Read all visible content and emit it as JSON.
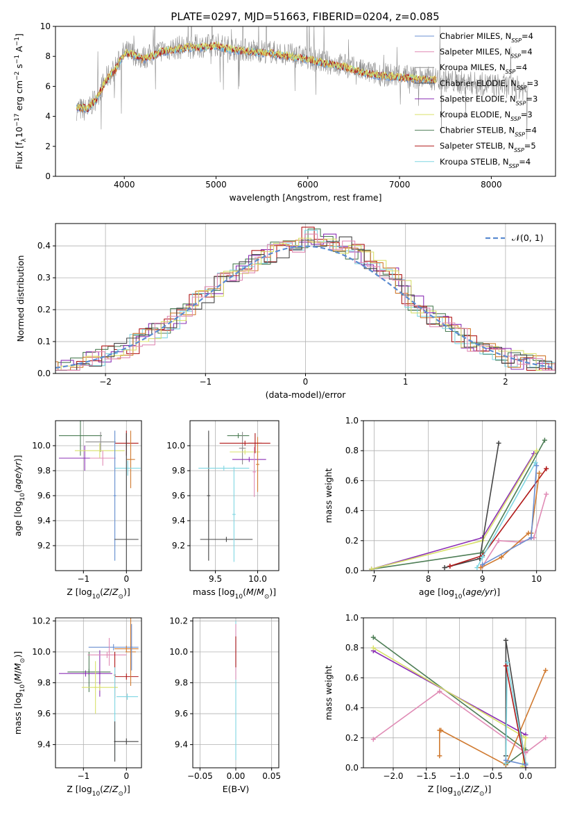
{
  "figure": {
    "title": "PLATE=0297, MJD=51663, FIBERID=0204, z=0.085"
  },
  "palette": {
    "Chabrier MILES": "#6a8fd0",
    "Salpeter MILES": "#e08bb5",
    "Kroupa MILES": "#8c8c8c",
    "Chabrier ELODIE": "#444444",
    "Salpeter ELODIE": "#8b2fb5",
    "Kroupa ELODIE": "#d8e06a",
    "Chabrier STELIB": "#4d7d55",
    "Salpeter STELIB": "#b01818",
    "Kroupa STELIB": "#7fd6e2",
    "orange": "#d07a30",
    "gaussian": "#5b8bd0"
  },
  "chart_data": [
    {
      "id": "spectrum",
      "type": "line",
      "title": "PLATE=0297, MJD=51663, FIBERID=0204, z=0.085",
      "xlabel": "wavelength [Angstrom, rest frame]",
      "ylabel": "Flux [f_λ 10^-17 erg cm^-2 s^-1 A^-1]",
      "xlim": [
        3250,
        8700
      ],
      "ylim": [
        0,
        10
      ],
      "xticks": [
        4000,
        5000,
        6000,
        7000,
        8000
      ],
      "yticks": [
        0,
        2,
        4,
        6,
        8,
        10
      ],
      "xtick_labels": [
        "4000",
        "5000",
        "6000",
        "7000",
        "8000"
      ],
      "ytick_labels": [
        "0",
        "2",
        "4",
        "6",
        "8",
        "10"
      ],
      "grid": false,
      "legend_position": "right",
      "legend": [
        {
          "base": "Chabrier MILES, N",
          "sub": "SSP",
          "tail": "=4"
        },
        {
          "base": "Salpeter MILES, N",
          "sub": "SSP",
          "tail": "=4"
        },
        {
          "base": "Kroupa MILES, N",
          "sub": "SSP",
          "tail": "=4"
        },
        {
          "base": "Chabrier ELODIE, N",
          "sub": "SSP",
          "tail": "=3"
        },
        {
          "base": "Salpeter ELODIE, N",
          "sub": "SSP",
          "tail": "=3"
        },
        {
          "base": "Kroupa ELODIE, N",
          "sub": "SSP",
          "tail": "=3"
        },
        {
          "base": "Chabrier STELIB, N",
          "sub": "SSP",
          "tail": "=4"
        },
        {
          "base": "Salpeter STELIB, N",
          "sub": "SSP",
          "tail": "=5"
        },
        {
          "base": "Kroupa STELIB, N",
          "sub": "SSP",
          "tail": "=4"
        }
      ],
      "observed_flux": {
        "x": [
          3500,
          3600,
          3700,
          3800,
          3900,
          4000,
          4100,
          4200,
          4300,
          4400,
          4500,
          4600,
          4700,
          4800,
          4900,
          5000,
          5200,
          5400,
          5600,
          5800,
          6000,
          6200,
          6400,
          6600,
          6800,
          7000,
          7200,
          7400,
          7600,
          7800,
          8000,
          8200,
          8400
        ],
        "y": [
          4.5,
          4.4,
          5.3,
          6.5,
          7.2,
          8.3,
          8.2,
          7.9,
          8.1,
          8.4,
          8.5,
          8.6,
          8.6,
          8.7,
          8.7,
          8.8,
          8.5,
          8.4,
          8.3,
          8.1,
          7.9,
          7.6,
          7.4,
          7.0,
          6.8,
          6.7,
          6.6,
          6.5,
          6.3,
          6.2,
          6.1,
          6.0,
          5.8
        ]
      },
      "model_flux": {
        "x": [
          3500,
          3600,
          3700,
          3800,
          3900,
          4000,
          4100,
          4200,
          4300,
          4400,
          4500,
          4600,
          4700,
          4800,
          4900,
          5000,
          5200,
          5400,
          5600,
          5800,
          6000,
          6200,
          6400,
          6600,
          6800,
          7000,
          7200,
          7400
        ],
        "y": [
          4.6,
          4.5,
          5.2,
          6.4,
          7.1,
          8.2,
          8.1,
          7.8,
          8.0,
          8.3,
          8.4,
          8.5,
          8.6,
          8.6,
          8.6,
          8.7,
          8.4,
          8.3,
          8.2,
          8.0,
          7.8,
          7.5,
          7.3,
          6.9,
          6.7,
          6.6,
          6.5,
          6.4
        ]
      }
    },
    {
      "id": "residuals",
      "type": "line",
      "xlabel": "(data-model)/error",
      "ylabel": "Normed distribution",
      "xlim": [
        -2.5,
        2.5
      ],
      "ylim": [
        0,
        0.47
      ],
      "xticks": [
        -2,
        -1,
        0,
        1,
        2
      ],
      "yticks": [
        0.0,
        0.1,
        0.2,
        0.3,
        0.4
      ],
      "xtick_labels": [
        "−2",
        "−1",
        "0",
        "1",
        "2"
      ],
      "ytick_labels": [
        "0.0",
        "0.1",
        "0.2",
        "0.3",
        "0.4"
      ],
      "grid": true,
      "legend_position": "top-right",
      "legend_label": "𝒩(0, 1)",
      "gaussian": {
        "mean": 0,
        "sigma": 1
      },
      "bin_width": 0.125
    },
    {
      "id": "age-vs-Z",
      "type": "scatter",
      "xlabel": "Z [log10(Z/Z⊙)]",
      "ylabel": "age [log10(age/yr)]",
      "xlim": [
        -1.65,
        0.35
      ],
      "ylim": [
        9.0,
        10.2
      ],
      "xticks": [
        -1,
        0
      ],
      "xtick_labels": [
        "−1",
        "0"
      ],
      "yticks": [
        9.2,
        9.4,
        9.6,
        9.8,
        10.0
      ],
      "ytick_labels": [
        "9.2",
        "9.4",
        "9.6",
        "9.8",
        "10.0"
      ],
      "grid": true,
      "errorbars": [
        {
          "x": -1.07,
          "xerr": 0.5,
          "y": 10.08,
          "yerr": 0.16,
          "color": "Chabrier STELIB"
        },
        {
          "x": -0.6,
          "xerr": 0.35,
          "y": 10.03,
          "yerr": 0.08,
          "color": "Kroupa MILES"
        },
        {
          "x": -0.97,
          "xerr": 0.6,
          "y": 9.9,
          "yerr": 0.1,
          "color": "Salpeter ELODIE"
        },
        {
          "x": -0.62,
          "xerr": 0.58,
          "y": 9.96,
          "yerr": 0.06,
          "color": "Kroupa ELODIE"
        },
        {
          "x": -0.55,
          "xerr": 0.3,
          "y": 9.9,
          "yerr": 0.06,
          "color": "Salpeter MILES"
        },
        {
          "x": 0.0,
          "xerr": 0.28,
          "y": 10.02,
          "yerr": 0.1,
          "color": "Salpeter STELIB"
        },
        {
          "x": 0.1,
          "xerr": 0.1,
          "y": 9.89,
          "yerr": 0.23,
          "color": "orange"
        },
        {
          "x": 0.03,
          "xerr": 0.3,
          "y": 9.82,
          "yerr": 0.06,
          "color": "Kroupa STELIB"
        },
        {
          "x": -0.27,
          "xerr": 0.03,
          "y": 9.6,
          "yerr": 0.52,
          "color": "Kroupa STELIB"
        },
        {
          "x": -0.27,
          "xerr": 0.03,
          "y": 9.6,
          "yerr": 0.52,
          "color": "Chabrier MILES"
        },
        {
          "x": 0.0,
          "xerr": 0.28,
          "y": 9.25,
          "yerr": 0.85,
          "color": "Chabrier ELODIE"
        }
      ]
    },
    {
      "id": "age-vs-mass",
      "type": "scatter",
      "xlabel": "mass [log10(M/M⊙)]",
      "ylabel": "",
      "xlim": [
        9.2,
        10.25
      ],
      "ylim": [
        9.0,
        10.2
      ],
      "xticks": [
        9.5,
        10.0
      ],
      "xtick_labels": [
        "9.5",
        "10.0"
      ],
      "yticks": [
        9.2,
        9.4,
        9.6,
        9.8,
        10.0
      ],
      "ytick_labels": [
        "9.2",
        "9.4",
        "9.6",
        "9.8",
        "10.0"
      ],
      "grid": true,
      "errorbars": [
        {
          "x": 9.42,
          "xerr": 0.02,
          "y": 9.6,
          "yerr": 0.52,
          "color": "Chabrier ELODIE"
        },
        {
          "x": 9.63,
          "xerr": 0.31,
          "y": 9.25,
          "yerr": 0.02,
          "color": "Chabrier ELODIE"
        },
        {
          "x": 9.72,
          "xerr": 0.02,
          "y": 9.45,
          "yerr": 0.38,
          "color": "Kroupa STELIB"
        },
        {
          "x": 9.6,
          "xerr": 0.3,
          "y": 9.82,
          "yerr": 0.02,
          "color": "Kroupa STELIB"
        },
        {
          "x": 9.77,
          "xerr": 0.13,
          "y": 10.08,
          "yerr": 0.02,
          "color": "Chabrier STELIB"
        },
        {
          "x": 9.82,
          "xerr": 0.04,
          "y": 9.98,
          "yerr": 0.13,
          "color": "Kroupa MILES"
        },
        {
          "x": 9.85,
          "xerr": 0.18,
          "y": 9.95,
          "yerr": 0.02,
          "color": "Kroupa ELODIE"
        },
        {
          "x": 9.9,
          "xerr": 0.2,
          "y": 9.89,
          "yerr": 0.02,
          "color": "Salpeter ELODIE"
        },
        {
          "x": 9.96,
          "xerr": 0.02,
          "y": 9.79,
          "yerr": 0.2,
          "color": "Salpeter MILES"
        },
        {
          "x": 10.0,
          "xerr": 0.02,
          "y": 9.85,
          "yerr": 0.22,
          "color": "orange"
        },
        {
          "x": 9.85,
          "xerr": 0.3,
          "y": 10.02,
          "yerr": 0.02,
          "color": "Salpeter STELIB"
        },
        {
          "x": 9.97,
          "xerr": 0.08,
          "y": 10.02,
          "yerr": 0.08,
          "color": "Salpeter STELIB"
        }
      ]
    },
    {
      "id": "mass-weight-vs-age",
      "type": "line",
      "xlabel": "age [log10(age/yr)]",
      "ylabel": "mass weight",
      "xlim": [
        6.8,
        10.35
      ],
      "ylim": [
        0,
        1
      ],
      "xticks": [
        7,
        8,
        9,
        10
      ],
      "xtick_labels": [
        "7",
        "8",
        "9",
        "10"
      ],
      "yticks": [
        0.0,
        0.2,
        0.4,
        0.6,
        0.8,
        1.0
      ],
      "ytick_labels": [
        "0.0",
        "0.2",
        "0.4",
        "0.6",
        "0.8",
        "1.0"
      ],
      "grid": true,
      "series": [
        {
          "color": "Chabrier STELIB",
          "x": [
            6.95,
            9.0,
            10.15
          ],
          "y": [
            0.01,
            0.12,
            0.87
          ]
        },
        {
          "color": "Salpeter ELODIE",
          "x": [
            6.95,
            9.0,
            9.95
          ],
          "y": [
            0.01,
            0.22,
            0.78
          ]
        },
        {
          "color": "Kroupa ELODIE",
          "x": [
            6.95,
            9.0,
            10.0
          ],
          "y": [
            0.01,
            0.2,
            0.8
          ]
        },
        {
          "color": "Chabrier ELODIE",
          "x": [
            8.3,
            8.95,
            9.3
          ],
          "y": [
            0.02,
            0.08,
            0.85
          ]
        },
        {
          "color": "Salpeter STELIB",
          "x": [
            8.4,
            9.0,
            10.18
          ],
          "y": [
            0.03,
            0.1,
            0.68
          ]
        },
        {
          "color": "Kroupa STELIB",
          "x": [
            8.9,
            9.0,
            9.98
          ],
          "y": [
            0.02,
            0.09,
            0.72
          ]
        },
        {
          "color": "Salpeter MILES",
          "x": [
            9.0,
            9.3,
            9.7,
            9.95,
            10.18
          ],
          "y": [
            0.03,
            0.2,
            0.19,
            0.22,
            0.51
          ]
        },
        {
          "color": "orange",
          "x": [
            8.97,
            9.35,
            9.85,
            9.9,
            10.05
          ],
          "y": [
            0.02,
            0.09,
            0.25,
            0.25,
            0.65
          ]
        },
        {
          "color": "Chabrier MILES",
          "x": [
            9.0,
            9.9,
            10.0
          ],
          "y": [
            0.04,
            0.22,
            0.7
          ]
        }
      ]
    },
    {
      "id": "mass-vs-Z",
      "type": "scatter",
      "xlabel": "Z [log10(Z/Z⊙)]",
      "ylabel": "mass [log10(M/M⊙)]",
      "xlim": [
        -1.65,
        0.35
      ],
      "ylim": [
        9.25,
        10.22
      ],
      "xticks": [
        -1,
        0
      ],
      "xtick_labels": [
        "−1",
        "0"
      ],
      "yticks": [
        9.4,
        9.6,
        9.8,
        10.0,
        10.2
      ],
      "ytick_labels": [
        "9.4",
        "9.6",
        "9.8",
        "10.0",
        "10.2"
      ],
      "grid": true,
      "errorbars": [
        {
          "x": -0.87,
          "xerr": 0.5,
          "y": 9.87,
          "yerr": 0.02,
          "color": "Chabrier STELIB"
        },
        {
          "x": -0.87,
          "xerr": 0.02,
          "y": 9.87,
          "yerr": 0.13,
          "color": "Chabrier STELIB"
        },
        {
          "x": -0.95,
          "xerr": 0.62,
          "y": 9.86,
          "yerr": 0.02,
          "color": "Salpeter ELODIE"
        },
        {
          "x": -0.62,
          "xerr": 0.02,
          "y": 9.86,
          "yerr": 0.15,
          "color": "Salpeter ELODIE"
        },
        {
          "x": -0.62,
          "xerr": 0.42,
          "y": 9.77,
          "yerr": 0.02,
          "color": "Kroupa ELODIE"
        },
        {
          "x": -0.72,
          "xerr": 0.02,
          "y": 9.77,
          "yerr": 0.17,
          "color": "Kroupa ELODIE"
        },
        {
          "x": -0.3,
          "xerr": 0.58,
          "y": 10.03,
          "yerr": 0.02,
          "color": "Chabrier MILES"
        },
        {
          "x": -0.4,
          "xerr": 0.02,
          "y": 10.0,
          "yerr": 0.09,
          "color": "Salpeter MILES"
        },
        {
          "x": -0.45,
          "xerr": 0.45,
          "y": 9.98,
          "yerr": 0.02,
          "color": "Salpeter MILES"
        },
        {
          "x": 0.0,
          "xerr": 0.28,
          "y": 9.84,
          "yerr": 0.02,
          "color": "Salpeter STELIB"
        },
        {
          "x": -0.27,
          "xerr": 0.02,
          "y": 9.85,
          "yerr": 0.15,
          "color": "Salpeter STELIB"
        },
        {
          "x": 0.1,
          "xerr": 0.12,
          "y": 10.0,
          "yerr": 0.22,
          "color": "orange"
        },
        {
          "x": 0.0,
          "xerr": 0.28,
          "y": 10.02,
          "yerr": 0.02,
          "color": "orange"
        },
        {
          "x": 0.02,
          "xerr": 0.25,
          "y": 9.71,
          "yerr": 0.02,
          "color": "Kroupa STELIB"
        },
        {
          "x": -0.27,
          "xerr": 0.02,
          "y": 9.6,
          "yerr": 0.3,
          "color": "Kroupa STELIB"
        },
        {
          "x": 0.12,
          "xerr": 0.02,
          "y": 10.03,
          "yerr": 0.15,
          "color": "Chabrier MILES"
        },
        {
          "x": 0.0,
          "xerr": 0.28,
          "y": 9.42,
          "yerr": 0.02,
          "color": "Chabrier ELODIE"
        },
        {
          "x": -0.27,
          "xerr": 0.02,
          "y": 9.42,
          "yerr": 0.13,
          "color": "Chabrier ELODIE"
        }
      ]
    },
    {
      "id": "mass-vs-EBV",
      "type": "scatter",
      "xlabel": "E(B-V)",
      "ylabel": "",
      "xlim": [
        -0.06,
        0.06
      ],
      "ylim": [
        9.25,
        10.22
      ],
      "xticks": [
        -0.05,
        0.0,
        0.05
      ],
      "xtick_labels": [
        "−0.05",
        "0.00",
        "0.05"
      ],
      "yticks": [
        9.4,
        9.6,
        9.8,
        10.0,
        10.2
      ],
      "ytick_labels": [
        "9.4",
        "9.6",
        "9.8",
        "10.0",
        "10.2"
      ],
      "grid": true,
      "errorbars": [
        {
          "x": 0.0,
          "xerr": 0.0,
          "y": 9.75,
          "yerr": 0.45,
          "color": "Kroupa STELIB"
        },
        {
          "x": 0.0,
          "xerr": 0.0,
          "y": 10.0,
          "yerr": 0.18,
          "color": "Salpeter MILES"
        },
        {
          "x": 0.0,
          "xerr": 0.0,
          "y": 10.0,
          "yerr": 0.1,
          "color": "Salpeter STELIB"
        }
      ]
    },
    {
      "id": "mass-weight-vs-Z",
      "type": "line",
      "xlabel": "Z [log10(Z/Z⊙)]",
      "ylabel": "mass weight",
      "xlim": [
        -2.45,
        0.45
      ],
      "ylim": [
        0,
        1
      ],
      "xticks": [
        -2.0,
        -1.5,
        -1.0,
        -0.5,
        0.0
      ],
      "xtick_labels": [
        "−2.0",
        "−1.5",
        "−1.0",
        "−0.5",
        "0.0"
      ],
      "yticks": [
        0.0,
        0.2,
        0.4,
        0.6,
        0.8,
        1.0
      ],
      "ytick_labels": [
        "0.0",
        "0.2",
        "0.4",
        "0.6",
        "0.8",
        "1.0"
      ],
      "grid": true,
      "series": [
        {
          "color": "Chabrier STELIB",
          "x": [
            -2.3,
            0.0,
            -0.3
          ],
          "y": [
            0.87,
            0.12,
            0.02
          ]
        },
        {
          "color": "Salpeter ELODIE",
          "x": [
            -2.3,
            0.0
          ],
          "y": [
            0.78,
            0.22
          ]
        },
        {
          "color": "Kroupa ELODIE",
          "x": [
            -2.3,
            0.0,
            -0.05
          ],
          "y": [
            0.8,
            0.2,
            0.01
          ]
        },
        {
          "color": "Salpeter MILES",
          "x": [
            -2.3,
            -1.3,
            0.0,
            0.3
          ],
          "y": [
            0.19,
            0.51,
            0.1,
            0.2
          ]
        },
        {
          "color": "orange",
          "x": [
            -1.3,
            -1.3,
            -1.28,
            -0.3,
            0.3
          ],
          "y": [
            0.08,
            0.25,
            0.25,
            0.02,
            0.65
          ]
        },
        {
          "color": "Chabrier ELODIE",
          "x": [
            -0.3,
            -0.3,
            0.0
          ],
          "y": [
            0.08,
            0.85,
            0.02
          ]
        },
        {
          "color": "Kroupa STELIB",
          "x": [
            -0.3,
            -0.28,
            0.0
          ],
          "y": [
            0.03,
            0.7,
            0.03
          ]
        },
        {
          "color": "Salpeter STELIB",
          "x": [
            -0.3,
            0.0
          ],
          "y": [
            0.68,
            0.0
          ]
        },
        {
          "color": "Chabrier MILES",
          "x": [
            -0.3,
            0.0
          ],
          "y": [
            0.05,
            0.02
          ]
        }
      ]
    }
  ]
}
